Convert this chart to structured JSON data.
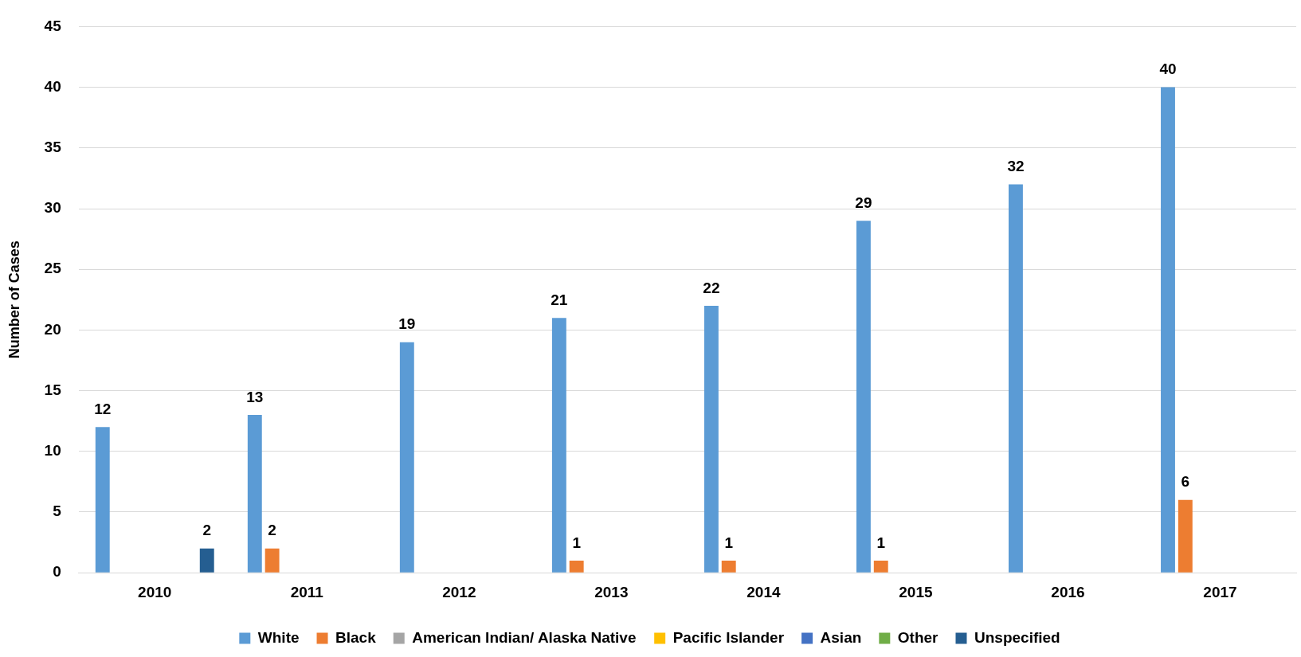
{
  "chart_data": {
    "type": "bar",
    "ylabel": "Number of Cases",
    "categories": [
      "2010",
      "2011",
      "2012",
      "2013",
      "2014",
      "2015",
      "2016",
      "2017"
    ],
    "series": [
      {
        "name": "White",
        "color": "#5b9bd5",
        "values": [
          12,
          13,
          19,
          21,
          22,
          29,
          32,
          40
        ],
        "value_labels": [
          "12",
          "13",
          "19",
          "21",
          "22",
          "29",
          "32",
          "40"
        ]
      },
      {
        "name": "Black",
        "color": "#ed7d31",
        "values": [
          0,
          2,
          0,
          1,
          1,
          1,
          0,
          6
        ],
        "value_labels": [
          null,
          "2",
          null,
          "1",
          "1",
          "1",
          null,
          "6"
        ]
      },
      {
        "name": "American Indian/ Alaska Native",
        "color": "#a5a5a5",
        "values": [
          0,
          0,
          0,
          0,
          0,
          0,
          0,
          0
        ],
        "value_labels": [
          null,
          null,
          null,
          null,
          null,
          null,
          null,
          null
        ]
      },
      {
        "name": "Pacific Islander",
        "color": "#ffc000",
        "values": [
          0,
          0,
          0,
          0,
          0,
          0,
          0,
          0
        ],
        "value_labels": [
          null,
          null,
          null,
          null,
          null,
          null,
          null,
          null
        ]
      },
      {
        "name": "Asian",
        "color": "#4472c4",
        "values": [
          0,
          0,
          0,
          0,
          0,
          0,
          0,
          0
        ],
        "value_labels": [
          null,
          null,
          null,
          null,
          null,
          null,
          null,
          null
        ]
      },
      {
        "name": "Other",
        "color": "#70ad47",
        "values": [
          0,
          0,
          0,
          0,
          0,
          0,
          0,
          0
        ],
        "value_labels": [
          null,
          null,
          null,
          null,
          null,
          null,
          null,
          null
        ]
      },
      {
        "name": "Unspecified",
        "color": "#255e91",
        "values": [
          2,
          0,
          0,
          0,
          0,
          0,
          0,
          0
        ],
        "value_labels": [
          "2",
          null,
          null,
          null,
          null,
          null,
          null,
          null
        ]
      }
    ],
    "ylim": [
      0,
      45
    ],
    "yticks": [
      0,
      5,
      10,
      15,
      20,
      25,
      30,
      35,
      40,
      45
    ],
    "grid": "y",
    "legend": "bottom"
  }
}
